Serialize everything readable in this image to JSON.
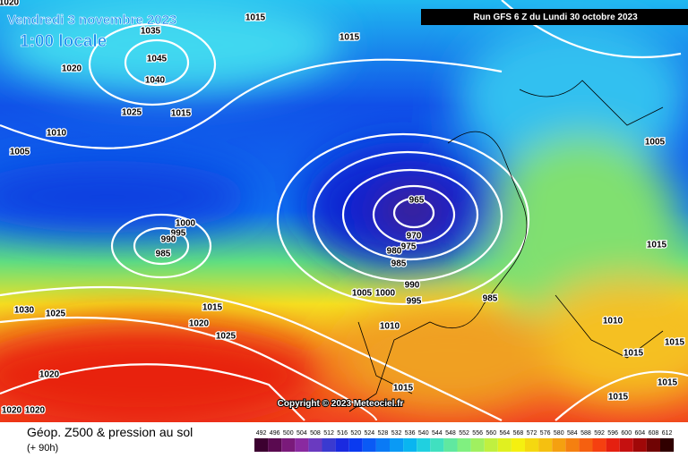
{
  "header": {
    "date": "Vendredi 3 novembre 2023",
    "time": "1:00 locale",
    "run": "Run GFS 6 Z du Lundi 30 octobre 2023"
  },
  "copyright": "Copyright © 2023 Meteociel.fr",
  "footer": {
    "title": "Géop. Z500 & pression au sol",
    "subtitle": "(+ 90h)"
  },
  "legend": {
    "values": [
      492,
      496,
      500,
      504,
      508,
      512,
      516,
      520,
      524,
      528,
      532,
      536,
      540,
      544,
      548,
      552,
      556,
      560,
      564,
      568,
      572,
      576,
      580,
      584,
      588,
      592,
      596,
      600,
      604,
      608,
      612
    ],
    "colors": [
      "#3c0030",
      "#5a0a50",
      "#7a1a7a",
      "#8a2aa0",
      "#6a3ac0",
      "#3a3ad0",
      "#1a2ae0",
      "#0a3af0",
      "#0a5af5",
      "#0a7af5",
      "#0a9af5",
      "#0ab5f0",
      "#20d0e0",
      "#40e0c0",
      "#60e8a0",
      "#80f080",
      "#a0f060",
      "#c0f040",
      "#e0f020",
      "#f5f010",
      "#f5d810",
      "#f5c010",
      "#f5a010",
      "#f58010",
      "#f56010",
      "#f54010",
      "#e52010",
      "#c51010",
      "#a00808",
      "#700404",
      "#300000"
    ]
  },
  "isobar_labels": [
    "1020",
    "1015",
    "1035",
    "1045",
    "1040",
    "1020",
    "1015",
    "1025",
    "1015",
    "1010",
    "1005",
    "1005",
    "965",
    "970",
    "975",
    "980",
    "985",
    "1000",
    "995",
    "990",
    "985",
    "1015",
    "990",
    "1005",
    "1000",
    "995",
    "985",
    "1030",
    "1025",
    "1015",
    "1010",
    "1020",
    "1015",
    "1025",
    "1010",
    "1015",
    "1020",
    "1015",
    "1015",
    "1015",
    "1020",
    "1020"
  ]
}
